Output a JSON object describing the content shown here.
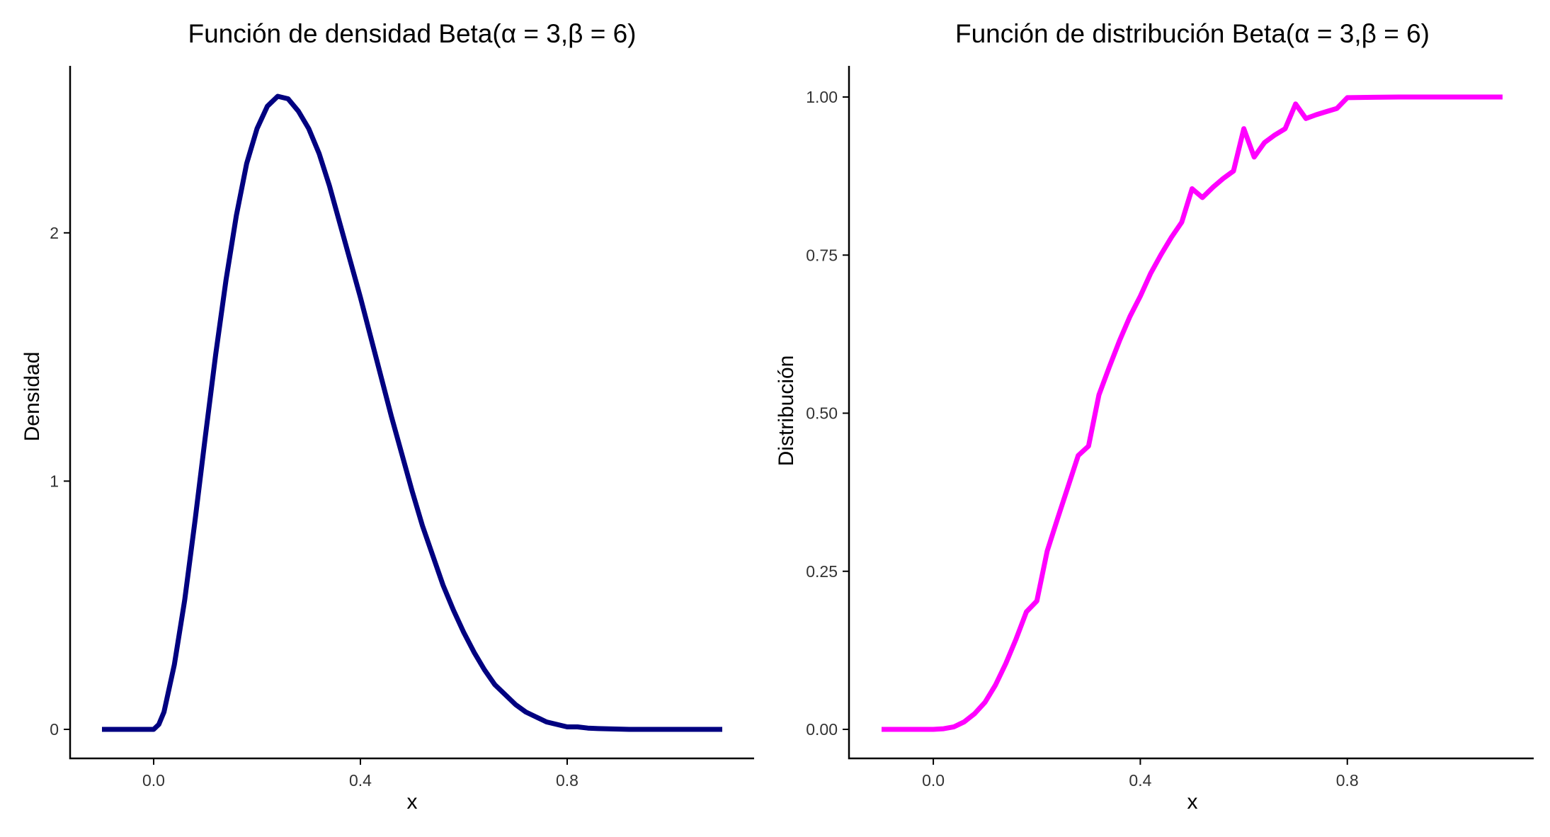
{
  "chart_data": [
    {
      "type": "line",
      "title": "Función de densidad Beta(α = 3,β = 6)",
      "xlabel": "x",
      "ylabel": "Densidad",
      "xlim": [
        -0.1,
        1.1
      ],
      "ylim": [
        0,
        2.55
      ],
      "x_ticks": [
        "0.0",
        "0.4",
        "0.8"
      ],
      "y_ticks": [
        "0",
        "1",
        "2"
      ],
      "grid": false,
      "color": "#000080",
      "series": [
        {
          "x": [
            -0.1,
            -0.05,
            0.0,
            0.01,
            0.02,
            0.04,
            0.06,
            0.08,
            0.1,
            0.12,
            0.14,
            0.16,
            0.18,
            0.2,
            0.22,
            0.24,
            0.26,
            0.28,
            0.3,
            0.32,
            0.34,
            0.36,
            0.38,
            0.4,
            0.42,
            0.44,
            0.46,
            0.48,
            0.5,
            0.52,
            0.54,
            0.56,
            0.58,
            0.6,
            0.62,
            0.64,
            0.66,
            0.68,
            0.7,
            0.72,
            0.74,
            0.76,
            0.78,
            0.8,
            0.82,
            0.84,
            0.86,
            0.88,
            0.9,
            0.92,
            0.95,
            1.0,
            1.05,
            1.1
          ],
          "y": [
            0,
            0,
            0,
            0.02,
            0.07,
            0.26,
            0.52,
            0.84,
            1.18,
            1.51,
            1.81,
            2.07,
            2.28,
            2.42,
            2.51,
            2.55,
            2.54,
            2.49,
            2.42,
            2.32,
            2.19,
            2.04,
            1.89,
            1.74,
            1.58,
            1.42,
            1.26,
            1.11,
            0.96,
            0.82,
            0.7,
            0.58,
            0.48,
            0.39,
            0.31,
            0.24,
            0.18,
            0.14,
            0.1,
            0.07,
            0.05,
            0.03,
            0.02,
            0.01,
            0.01,
            0.005,
            0.003,
            0.002,
            0.001,
            0,
            0,
            0,
            0,
            0
          ]
        }
      ]
    },
    {
      "type": "line",
      "title": "Función de distribución Beta(α = 3,β = 6)",
      "xlabel": "x",
      "ylabel": "Distribución",
      "xlim": [
        -0.1,
        1.1
      ],
      "ylim": [
        0,
        1
      ],
      "x_ticks": [
        "0.0",
        "0.4",
        "0.8"
      ],
      "y_ticks": [
        "0.00",
        "0.25",
        "0.50",
        "0.75",
        "1.00"
      ],
      "grid": false,
      "color": "#FF00FF",
      "series": [
        {
          "x": [
            -0.1,
            -0.05,
            0.0,
            0.02,
            0.04,
            0.06,
            0.08,
            0.1,
            0.12,
            0.14,
            0.16,
            0.18,
            0.2,
            0.22,
            0.24,
            0.26,
            0.28,
            0.3,
            0.32,
            0.34,
            0.36,
            0.38,
            0.4,
            0.42,
            0.44,
            0.46,
            0.48,
            0.5,
            0.52,
            0.54,
            0.56,
            0.58,
            0.6,
            0.62,
            0.64,
            0.66,
            0.68,
            0.7,
            0.72,
            0.74,
            0.76,
            0.78,
            0.8,
            0.85,
            0.9,
            0.95,
            1.0,
            1.05,
            1.1
          ],
          "y": [
            0,
            0,
            0,
            0.001,
            0.004,
            0.012,
            0.025,
            0.043,
            0.07,
            0.104,
            0.143,
            0.186,
            0.203,
            0.282,
            0.333,
            0.383,
            0.433,
            0.448,
            0.529,
            0.573,
            0.615,
            0.653,
            0.685,
            0.721,
            0.751,
            0.778,
            0.802,
            0.855,
            0.841,
            0.857,
            0.871,
            0.883,
            0.95,
            0.905,
            0.928,
            0.94,
            0.95,
            0.989,
            0.966,
            0.972,
            0.977,
            0.982,
            0.999,
            0.9995,
            1.0,
            1.0,
            1.0,
            1.0,
            1.0
          ]
        }
      ]
    }
  ]
}
